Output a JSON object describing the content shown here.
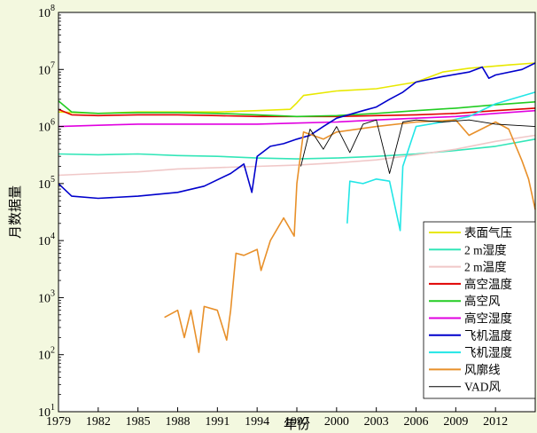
{
  "chart_data": {
    "type": "line",
    "xlabel": "年份",
    "ylabel": "月数据量",
    "xlim": [
      1979,
      2015
    ],
    "xticks": [
      1979,
      1982,
      1985,
      1988,
      1991,
      1994,
      1997,
      2000,
      2003,
      2006,
      2009,
      2012
    ],
    "xtick_labels": [
      "1979",
      "1982",
      "1985",
      "1988",
      "1991",
      "1994",
      "1997",
      "2000",
      "2003",
      "2006",
      "2009",
      "2012"
    ],
    "yscale": "log",
    "ylim_exp": [
      1,
      8
    ],
    "ytick_exps": [
      1,
      2,
      3,
      4,
      5,
      6,
      7,
      8
    ],
    "ytick_base": "10",
    "ytick_sup": [
      "1",
      "2",
      "3",
      "4",
      "5",
      "6",
      "7",
      "8"
    ],
    "legend_position": "bottom-right",
    "series": [
      {
        "name": "表面气压",
        "color": "#e8e800",
        "points": [
          [
            1979,
            1800000.0
          ],
          [
            1982,
            1700000.0
          ],
          [
            1985,
            1800000.0
          ],
          [
            1988,
            1800000.0
          ],
          [
            1991,
            1800000.0
          ],
          [
            1994,
            1900000.0
          ],
          [
            1996.5,
            2000000.0
          ],
          [
            1997,
            2600000.0
          ],
          [
            1997.5,
            3500000.0
          ],
          [
            2000,
            4200000.0
          ],
          [
            2003,
            4600000.0
          ],
          [
            2006,
            6000000.0
          ],
          [
            2008,
            9000000.0
          ],
          [
            2010,
            10500000.0
          ],
          [
            2013,
            12000000.0
          ],
          [
            2015,
            13000000.0
          ]
        ]
      },
      {
        "name": "2 m湿度",
        "color": "#33e6b8",
        "points": [
          [
            1979,
            330000.0
          ],
          [
            1982,
            320000.0
          ],
          [
            1985,
            330000.0
          ],
          [
            1988,
            310000.0
          ],
          [
            1991,
            300000.0
          ],
          [
            1994,
            280000.0
          ],
          [
            1997,
            270000.0
          ],
          [
            2000,
            280000.0
          ],
          [
            2003,
            300000.0
          ],
          [
            2006,
            330000.0
          ],
          [
            2009,
            380000.0
          ],
          [
            2012,
            450000.0
          ],
          [
            2015,
            600000.0
          ]
        ]
      },
      {
        "name": "2 m温度",
        "color": "#f0c8c8",
        "points": [
          [
            1979,
            140000.0
          ],
          [
            1982,
            150000.0
          ],
          [
            1985,
            160000.0
          ],
          [
            1988,
            180000.0
          ],
          [
            1991,
            190000.0
          ],
          [
            1994,
            200000.0
          ],
          [
            1997,
            210000.0
          ],
          [
            2000,
            230000.0
          ],
          [
            2003,
            260000.0
          ],
          [
            2006,
            320000.0
          ],
          [
            2009,
            400000.0
          ],
          [
            2012,
            550000.0
          ],
          [
            2015,
            700000.0
          ]
        ]
      },
      {
        "name": "高空温度",
        "color": "#e00000",
        "points": [
          [
            1979,
            2000000.0
          ],
          [
            1980,
            1600000.0
          ],
          [
            1982,
            1550000.0
          ],
          [
            1985,
            1600000.0
          ],
          [
            1988,
            1600000.0
          ],
          [
            1991,
            1550000.0
          ],
          [
            1994,
            1500000.0
          ],
          [
            1997,
            1500000.0
          ],
          [
            2000,
            1500000.0
          ],
          [
            2003,
            1550000.0
          ],
          [
            2006,
            1600000.0
          ],
          [
            2009,
            1700000.0
          ],
          [
            2012,
            1900000.0
          ],
          [
            2015,
            2100000.0
          ]
        ]
      },
      {
        "name": "高空风",
        "color": "#22cc22",
        "points": [
          [
            1979,
            2800000.0
          ],
          [
            1980,
            1800000.0
          ],
          [
            1982,
            1700000.0
          ],
          [
            1985,
            1750000.0
          ],
          [
            1988,
            1750000.0
          ],
          [
            1991,
            1700000.0
          ],
          [
            1994,
            1600000.0
          ],
          [
            1997,
            1500000.0
          ],
          [
            2000,
            1550000.0
          ],
          [
            2003,
            1700000.0
          ],
          [
            2006,
            1900000.0
          ],
          [
            2009,
            2100000.0
          ],
          [
            2012,
            2400000.0
          ],
          [
            2015,
            2700000.0
          ]
        ]
      },
      {
        "name": "高空湿度",
        "color": "#e000e0",
        "points": [
          [
            1979,
            1000000.0
          ],
          [
            1982,
            1050000.0
          ],
          [
            1985,
            1100000.0
          ],
          [
            1988,
            1100000.0
          ],
          [
            1991,
            1100000.0
          ],
          [
            1994,
            1100000.0
          ],
          [
            1997,
            1150000.0
          ],
          [
            2000,
            1200000.0
          ],
          [
            2003,
            1300000.0
          ],
          [
            2006,
            1400000.0
          ],
          [
            2009,
            1500000.0
          ],
          [
            2012,
            1700000.0
          ],
          [
            2015,
            1900000.0
          ]
        ]
      },
      {
        "name": "飞机温度",
        "color": "#0000cc",
        "points": [
          [
            1979,
            100000.0
          ],
          [
            1980,
            60000.0
          ],
          [
            1982,
            55000.0
          ],
          [
            1985,
            60000.0
          ],
          [
            1988,
            70000.0
          ],
          [
            1990,
            90000.0
          ],
          [
            1992,
            150000.0
          ],
          [
            1993,
            220000.0
          ],
          [
            1993.6,
            70000.0
          ],
          [
            1994,
            300000.0
          ],
          [
            1995,
            450000.0
          ],
          [
            1996,
            500000.0
          ],
          [
            1997,
            600000.0
          ],
          [
            1998,
            700000.0
          ],
          [
            1999,
            1000000.0
          ],
          [
            2000,
            1400000.0
          ],
          [
            2002,
            1900000.0
          ],
          [
            2003,
            2200000.0
          ],
          [
            2004,
            3000000.0
          ],
          [
            2005,
            4000000.0
          ],
          [
            2006,
            6000000.0
          ],
          [
            2008,
            7500000.0
          ],
          [
            2010,
            9000000.0
          ],
          [
            2011,
            11000000.0
          ],
          [
            2011.5,
            7000000.0
          ],
          [
            2012,
            8000000.0
          ],
          [
            2014,
            10000000.0
          ],
          [
            2015,
            13000000.0
          ]
        ]
      },
      {
        "name": "飞机湿度",
        "color": "#22e6e6",
        "points": [
          [
            2000.8,
            20000.0
          ],
          [
            2001,
            110000.0
          ],
          [
            2002,
            100000.0
          ],
          [
            2003,
            120000.0
          ],
          [
            2004,
            110000.0
          ],
          [
            2004.8,
            15000.0
          ],
          [
            2005,
            200000.0
          ],
          [
            2006,
            1000000.0
          ],
          [
            2008,
            1200000.0
          ],
          [
            2010,
            1500000.0
          ],
          [
            2012,
            2500000.0
          ],
          [
            2015,
            4000000.0
          ]
        ]
      },
      {
        "name": "风廓线",
        "color": "#e8902a",
        "points": [
          [
            1987,
            450.0
          ],
          [
            1988,
            600.0
          ],
          [
            1988.5,
            200.0
          ],
          [
            1989,
            600.0
          ],
          [
            1989.6,
            110.0
          ],
          [
            1990,
            700.0
          ],
          [
            1991,
            600.0
          ],
          [
            1991.7,
            180.0
          ],
          [
            1992,
            600.0
          ],
          [
            1992.4,
            6000.0
          ],
          [
            1993,
            5500.0
          ],
          [
            1994,
            7000.0
          ],
          [
            1994.3,
            3000.0
          ],
          [
            1995,
            10000.0
          ],
          [
            1996,
            25000.0
          ],
          [
            1996.8,
            12000.0
          ],
          [
            1997,
            100000.0
          ],
          [
            1997.5,
            800000.0
          ],
          [
            1999,
            600000.0
          ],
          [
            2000,
            800000.0
          ],
          [
            2003,
            1000000.0
          ],
          [
            2006,
            1200000.0
          ],
          [
            2009,
            1300000.0
          ],
          [
            2010,
            700000.0
          ],
          [
            2012,
            1200000.0
          ],
          [
            2013,
            900000.0
          ],
          [
            2014,
            250000.0
          ],
          [
            2014.5,
            120000.0
          ],
          [
            2015,
            35000.0
          ]
        ]
      },
      {
        "name": "VAD风",
        "color": "#000000",
        "points": [
          [
            1997.3,
            200000.0
          ],
          [
            1998,
            900000.0
          ],
          [
            1999,
            400000.0
          ],
          [
            2000,
            1000000.0
          ],
          [
            2001,
            350000.0
          ],
          [
            2002,
            1100000.0
          ],
          [
            2003,
            1300000.0
          ],
          [
            2004,
            150000.0
          ],
          [
            2005,
            1200000.0
          ],
          [
            2006,
            1300000.0
          ],
          [
            2008,
            1200000.0
          ],
          [
            2010,
            1300000.0
          ],
          [
            2012,
            1100000.0
          ],
          [
            2015,
            1000000.0
          ]
        ]
      }
    ]
  }
}
